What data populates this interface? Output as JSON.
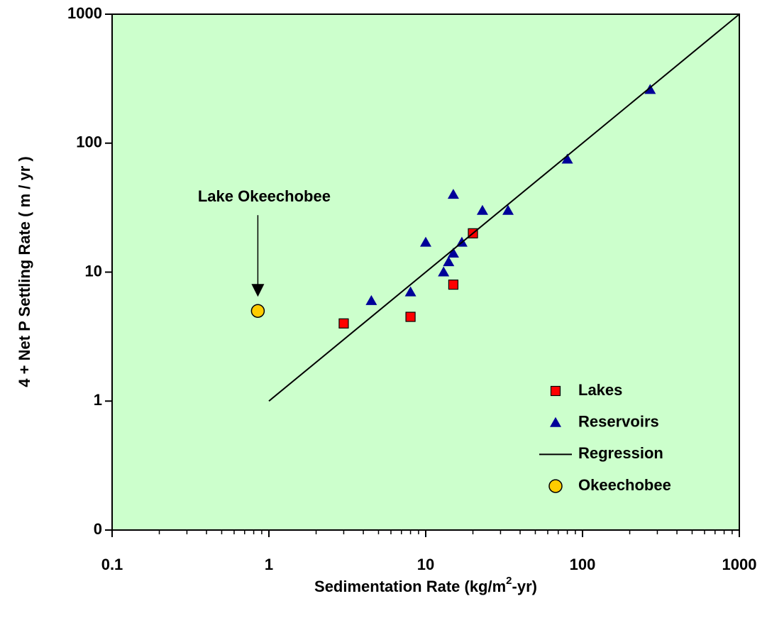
{
  "chart_data": {
    "type": "scatter",
    "xlabel": [
      "Sedimentation Rate (kg/m",
      "2",
      "-yr)"
    ],
    "ylabel": "4 + Net P Settling Rate ( m / yr )",
    "annotations": [
      "Lake Okeechobee"
    ],
    "xscale": "log",
    "yscale": "log",
    "xlim": [
      0.1,
      1000
    ],
    "ylim": [
      0.1,
      1000
    ],
    "xticks": [
      0.1,
      1,
      10,
      100,
      1000
    ],
    "yticks": [
      {
        "value": 0.1,
        "label": "0"
      },
      1,
      10,
      100,
      1000
    ],
    "background": "#ccffcc",
    "legend": "lower right",
    "series": [
      {
        "name": "Lakes",
        "color": "#ff0000",
        "marker": "square",
        "x": [
          3,
          8,
          15,
          20
        ],
        "y": [
          4,
          4.5,
          8,
          20
        ]
      },
      {
        "name": "Reservoirs",
        "color": "#000099",
        "marker": "triangle",
        "x": [
          4.5,
          8,
          10,
          13,
          14,
          15,
          15,
          17,
          23,
          33.5,
          80,
          270
        ],
        "y": [
          6,
          7,
          17,
          10,
          12,
          14,
          40,
          17,
          30,
          30,
          75,
          260
        ]
      },
      {
        "name": "Regression",
        "color": "#000000",
        "marker": "line",
        "x": [
          1,
          1000
        ],
        "y": [
          1,
          1000
        ]
      },
      {
        "name": "Okeechobee",
        "color": "#ffcc00",
        "marker": "circle",
        "x": [
          0.85
        ],
        "y": [
          5
        ]
      }
    ]
  }
}
